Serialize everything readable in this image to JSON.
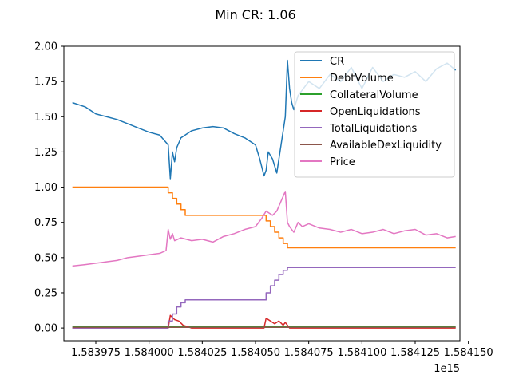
{
  "chart_data": {
    "type": "line",
    "title": "Min CR: 1.06",
    "xlabel": "",
    "ylabel": "",
    "x_offset_label": "1e15",
    "xlim": [
      1.58396,
      1.584146
    ],
    "ylim": [
      -0.09,
      2.0
    ],
    "x_ticks": [
      1.583975,
      1.584,
      1.584025,
      1.58405,
      1.584075,
      1.5841,
      1.584125,
      1.58415
    ],
    "x_tick_labels": [
      "1.583975",
      "1.584000",
      "1.584025",
      "1.584050",
      "1.584075",
      "1.584100",
      "1.584125",
      "1.584150"
    ],
    "y_ticks": [
      0.0,
      0.25,
      0.5,
      0.75,
      1.0,
      1.25,
      1.5,
      1.75,
      2.0
    ],
    "y_tick_labels": [
      "0.00",
      "0.25",
      "0.50",
      "0.75",
      "1.00",
      "1.25",
      "1.50",
      "1.75",
      "2.00"
    ],
    "grid": false,
    "legend_position": "top-right",
    "series": [
      {
        "name": "CR",
        "color": "#1f77b4",
        "x": [
          1.583964,
          1.58397,
          1.583975,
          1.58398,
          1.583985,
          1.58399,
          1.583995,
          1.584,
          1.584005,
          1.584009,
          1.58401,
          1.584011,
          1.584012,
          1.584013,
          1.584015,
          1.58402,
          1.584025,
          1.58403,
          1.584035,
          1.58404,
          1.584045,
          1.58405,
          1.584052,
          1.584054,
          1.584055,
          1.584056,
          1.584058,
          1.58406,
          1.584062,
          1.584064,
          1.584065,
          1.584066,
          1.584067,
          1.584068,
          1.58407,
          1.584075,
          1.58408,
          1.584085,
          1.58409,
          1.584095,
          1.5841,
          1.584105,
          1.58411,
          1.584115,
          1.58412,
          1.584125,
          1.58413,
          1.584135,
          1.58414,
          1.584144
        ],
        "y": [
          1.6,
          1.57,
          1.52,
          1.5,
          1.48,
          1.45,
          1.42,
          1.39,
          1.37,
          1.3,
          1.06,
          1.25,
          1.18,
          1.28,
          1.35,
          1.4,
          1.42,
          1.43,
          1.42,
          1.38,
          1.35,
          1.3,
          1.2,
          1.08,
          1.12,
          1.25,
          1.2,
          1.1,
          1.3,
          1.5,
          1.9,
          1.7,
          1.6,
          1.55,
          1.65,
          1.75,
          1.7,
          1.8,
          1.75,
          1.85,
          1.7,
          1.85,
          1.75,
          1.8,
          1.78,
          1.82,
          1.75,
          1.84,
          1.88,
          1.83
        ]
      },
      {
        "name": "DebtVolume",
        "color": "#ff7f0e",
        "x": [
          1.583964,
          1.584009,
          1.584009,
          1.584011,
          1.584011,
          1.584013,
          1.584013,
          1.584015,
          1.584015,
          1.584017,
          1.584017,
          1.584055,
          1.584055,
          1.584057,
          1.584057,
          1.584059,
          1.584059,
          1.584061,
          1.584061,
          1.584063,
          1.584063,
          1.584065,
          1.584065,
          1.584144
        ],
        "y": [
          1.0,
          1.0,
          0.96,
          0.96,
          0.92,
          0.92,
          0.88,
          0.88,
          0.84,
          0.84,
          0.8,
          0.8,
          0.76,
          0.76,
          0.72,
          0.72,
          0.68,
          0.68,
          0.64,
          0.64,
          0.6,
          0.6,
          0.57,
          0.57
        ]
      },
      {
        "name": "CollateralVolume",
        "color": "#2ca02c",
        "x": [
          1.583964,
          1.584144
        ],
        "y": [
          0.01,
          0.01
        ]
      },
      {
        "name": "OpenLiquidations",
        "color": "#d62728",
        "x": [
          1.583964,
          1.584009,
          1.58401,
          1.584012,
          1.584014,
          1.584016,
          1.584018,
          1.58402,
          1.584054,
          1.584055,
          1.584057,
          1.584059,
          1.584061,
          1.584063,
          1.584064,
          1.584066,
          1.584144
        ],
        "y": [
          0.0,
          0.0,
          0.09,
          0.06,
          0.05,
          0.02,
          0.01,
          0.0,
          0.0,
          0.07,
          0.05,
          0.03,
          0.05,
          0.02,
          0.04,
          0.0,
          0.0
        ]
      },
      {
        "name": "TotalLiquidations",
        "color": "#9467bd",
        "x": [
          1.583964,
          1.584009,
          1.584009,
          1.584011,
          1.584011,
          1.584013,
          1.584013,
          1.584015,
          1.584015,
          1.584017,
          1.584017,
          1.584055,
          1.584055,
          1.584057,
          1.584057,
          1.584059,
          1.584059,
          1.584061,
          1.584061,
          1.584063,
          1.584063,
          1.584065,
          1.584065,
          1.584144
        ],
        "y": [
          0.0,
          0.0,
          0.05,
          0.05,
          0.1,
          0.1,
          0.15,
          0.15,
          0.18,
          0.18,
          0.2,
          0.2,
          0.25,
          0.25,
          0.3,
          0.3,
          0.34,
          0.34,
          0.38,
          0.38,
          0.41,
          0.41,
          0.43,
          0.43
        ]
      },
      {
        "name": "AvailableDexLiquidity",
        "color": "#8c564b",
        "x": [
          1.583964,
          1.584144
        ],
        "y": [
          0.005,
          0.005
        ]
      },
      {
        "name": "Price",
        "color": "#e377c2",
        "x": [
          1.583964,
          1.58397,
          1.583975,
          1.58398,
          1.583985,
          1.58399,
          1.583995,
          1.584,
          1.584005,
          1.584008,
          1.584009,
          1.58401,
          1.584011,
          1.584012,
          1.584015,
          1.58402,
          1.584025,
          1.58403,
          1.584035,
          1.58404,
          1.584045,
          1.58405,
          1.584053,
          1.584055,
          1.584058,
          1.58406,
          1.584062,
          1.584064,
          1.584065,
          1.584066,
          1.584067,
          1.584068,
          1.58407,
          1.584072,
          1.584075,
          1.58408,
          1.584085,
          1.58409,
          1.584095,
          1.5841,
          1.584105,
          1.58411,
          1.584115,
          1.58412,
          1.584125,
          1.58413,
          1.584135,
          1.58414,
          1.584144
        ],
        "y": [
          0.44,
          0.45,
          0.46,
          0.47,
          0.48,
          0.5,
          0.51,
          0.52,
          0.53,
          0.55,
          0.7,
          0.63,
          0.67,
          0.62,
          0.64,
          0.62,
          0.63,
          0.61,
          0.65,
          0.67,
          0.7,
          0.72,
          0.78,
          0.83,
          0.8,
          0.83,
          0.9,
          0.97,
          0.75,
          0.72,
          0.7,
          0.68,
          0.75,
          0.72,
          0.74,
          0.71,
          0.7,
          0.68,
          0.7,
          0.67,
          0.68,
          0.7,
          0.67,
          0.69,
          0.7,
          0.66,
          0.67,
          0.64,
          0.65
        ]
      }
    ]
  }
}
